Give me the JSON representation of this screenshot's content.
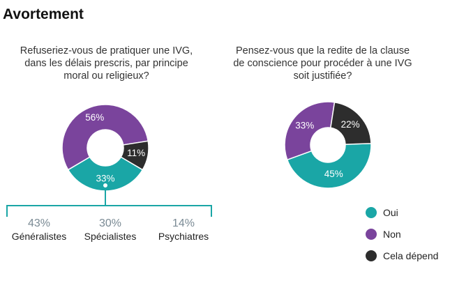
{
  "title": "Avortement",
  "colors": {
    "oui": "#1aa6a6",
    "non": "#7a449c",
    "depend": "#2d2d2d"
  },
  "legend": [
    {
      "label": "Oui",
      "color": "#1aa6a6"
    },
    {
      "label": "Non",
      "color": "#7a449c"
    },
    {
      "label": "Cela dépend",
      "color": "#2d2d2d"
    }
  ],
  "subgroups": [
    {
      "value": "43%",
      "label": "Généralistes"
    },
    {
      "value": "30%",
      "label": "Spécialistes"
    },
    {
      "value": "14%",
      "label": "Psychiatres"
    }
  ],
  "chart_data": [
    {
      "type": "pie",
      "title": "Refuseriez-vous de pratiquer une IVG, dans les délais prescris, par principe moral ou religieux?",
      "categories": [
        "Oui",
        "Non",
        "Cela dépend"
      ],
      "values": [
        33,
        56,
        11
      ],
      "labels": [
        "33%",
        "56%",
        "11%"
      ],
      "legend": "bottom-right",
      "breakdown_of": "Oui",
      "breakdown": {
        "categories": [
          "Généralistes",
          "Spécialistes",
          "Psychiatres"
        ],
        "values": [
          43,
          30,
          14
        ]
      }
    },
    {
      "type": "pie",
      "title": "Pensez-vous que la redite de la clause de conscience pour procéder à une IVG soit justifiée?",
      "categories": [
        "Oui",
        "Non",
        "Cela dépend"
      ],
      "values": [
        45,
        33,
        22
      ],
      "labels": [
        "45%",
        "33%",
        "22%"
      ],
      "legend": "bottom-right"
    }
  ]
}
